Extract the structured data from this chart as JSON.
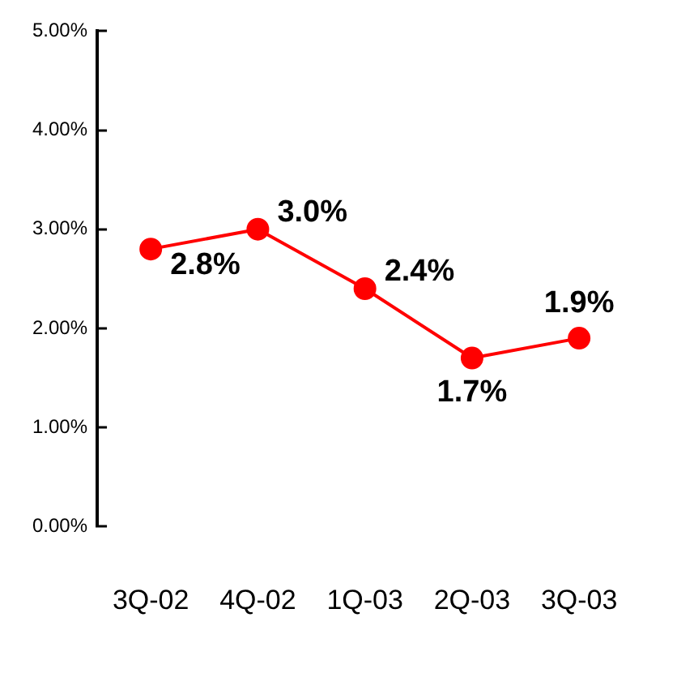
{
  "chart_data": {
    "type": "line",
    "categories": [
      "3Q-02",
      "4Q-02",
      "1Q-03",
      "2Q-03",
      "3Q-03"
    ],
    "series": [
      {
        "color": "#ff0000",
        "values": [
          2.8,
          3.0,
          2.4,
          1.7,
          1.9
        ],
        "value_labels": [
          "2.8%",
          "3.0%",
          "2.4%",
          "1.7%",
          "1.9%"
        ]
      }
    ],
    "ylim": [
      0,
      5
    ],
    "yticks": [
      {
        "value": 0,
        "label": "0.00%"
      },
      {
        "value": 1,
        "label": "1.00%"
      },
      {
        "value": 2,
        "label": "2.00%"
      },
      {
        "value": 3,
        "label": "3.00%"
      },
      {
        "value": 4,
        "label": "4.00%"
      },
      {
        "value": 5,
        "label": "5.00%"
      }
    ],
    "grid": false,
    "legend": false,
    "marker": "circle",
    "line_style": "solid"
  }
}
